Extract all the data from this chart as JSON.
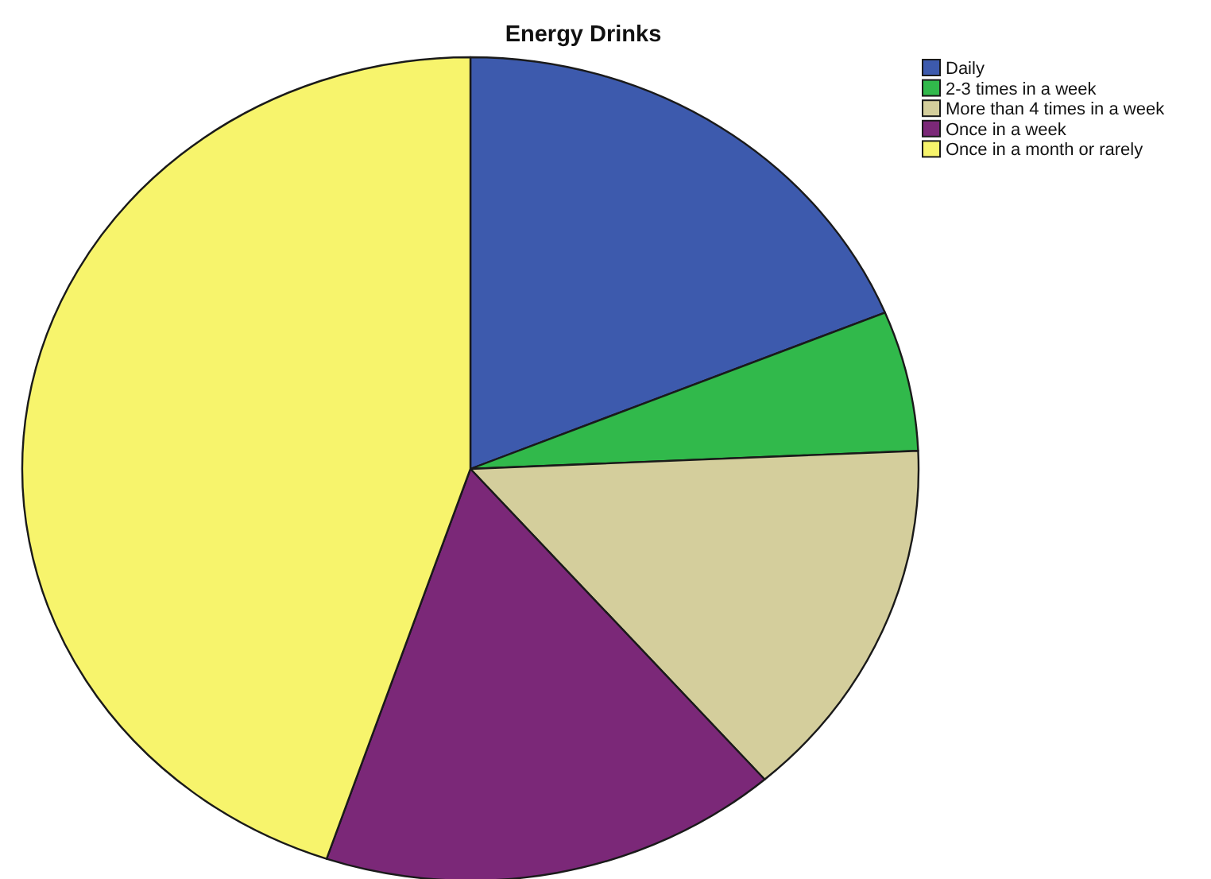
{
  "chart_data": {
    "type": "pie",
    "title": "Energy Drinks",
    "categories": [
      "Daily",
      "2-3 times in a week",
      "More than 4 times in a week",
      "Once in a week",
      "Once in a month or rarely"
    ],
    "values": [
      18.8,
      5.5,
      14.3,
      16.6,
      44.8
    ],
    "colors": [
      "#3d5aad",
      "#31b94b",
      "#d4ce9c",
      "#7b2878",
      "#f7f46c"
    ],
    "legend": "top right"
  }
}
